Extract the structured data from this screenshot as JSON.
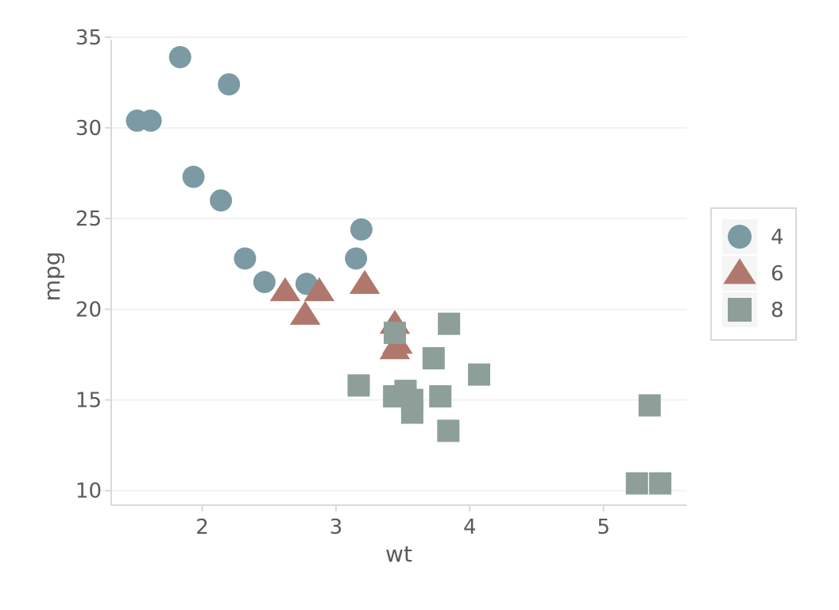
{
  "chart_data": {
    "type": "scatter",
    "title": "",
    "xlabel": "wt",
    "ylabel": "mpg",
    "xlim": [
      1.32,
      5.62
    ],
    "ylim": [
      9.2,
      35.3
    ],
    "x_ticks": [
      2,
      3,
      4,
      5
    ],
    "y_ticks": [
      10,
      15,
      20,
      25,
      30,
      35
    ],
    "grid": "horizontal-light",
    "legend": {
      "position": "right",
      "entries": [
        {
          "label": "4",
          "shape": "circle",
          "color": "#7b9aa3"
        },
        {
          "label": "6",
          "shape": "triangle",
          "color": "#b0786c"
        },
        {
          "label": "8",
          "shape": "square",
          "color": "#8d9f98"
        }
      ]
    },
    "series": [
      {
        "name": "4",
        "shape": "circle",
        "color": "#7b9aa3",
        "points": [
          {
            "x": 1.513,
            "y": 30.4
          },
          {
            "x": 1.615,
            "y": 30.4
          },
          {
            "x": 1.835,
            "y": 33.9
          },
          {
            "x": 1.935,
            "y": 27.3
          },
          {
            "x": 2.14,
            "y": 26.0
          },
          {
            "x": 2.2,
            "y": 32.4
          },
          {
            "x": 2.32,
            "y": 22.8
          },
          {
            "x": 2.465,
            "y": 21.5
          },
          {
            "x": 2.78,
            "y": 21.4
          },
          {
            "x": 3.15,
            "y": 22.8
          },
          {
            "x": 3.19,
            "y": 24.4
          }
        ]
      },
      {
        "name": "6",
        "shape": "triangle",
        "color": "#b0786c",
        "points": [
          {
            "x": 2.62,
            "y": 21.0
          },
          {
            "x": 2.77,
            "y": 19.7
          },
          {
            "x": 2.875,
            "y": 21.0
          },
          {
            "x": 3.215,
            "y": 21.4
          },
          {
            "x": 3.44,
            "y": 19.2
          },
          {
            "x": 3.44,
            "y": 17.8
          },
          {
            "x": 3.46,
            "y": 18.1
          }
        ]
      },
      {
        "name": "8",
        "shape": "square",
        "color": "#8d9f98",
        "points": [
          {
            "x": 3.17,
            "y": 15.8
          },
          {
            "x": 3.435,
            "y": 15.2
          },
          {
            "x": 3.44,
            "y": 18.7
          },
          {
            "x": 3.52,
            "y": 15.5
          },
          {
            "x": 3.57,
            "y": 14.3
          },
          {
            "x": 3.57,
            "y": 15.0
          },
          {
            "x": 3.73,
            "y": 17.3
          },
          {
            "x": 3.78,
            "y": 15.2
          },
          {
            "x": 3.84,
            "y": 13.3
          },
          {
            "x": 3.845,
            "y": 19.2
          },
          {
            "x": 4.07,
            "y": 16.4
          },
          {
            "x": 5.25,
            "y": 10.4
          },
          {
            "x": 5.345,
            "y": 14.7
          },
          {
            "x": 5.424,
            "y": 10.4
          }
        ]
      }
    ]
  }
}
